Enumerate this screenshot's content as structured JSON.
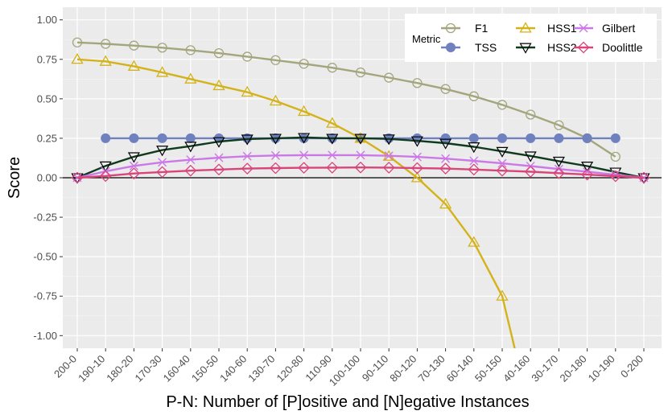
{
  "chart_data": {
    "type": "line",
    "xlabel": "P-N: Number of [P]ositive and [N]egative Instances",
    "ylabel": "Score",
    "categories": [
      "200-0",
      "190-10",
      "180-20",
      "170-30",
      "160-40",
      "150-50",
      "140-60",
      "130-70",
      "120-80",
      "110-90",
      "100-100",
      "90-110",
      "80-120",
      "70-130",
      "60-140",
      "50-150",
      "40-160",
      "30-170",
      "20-180",
      "10-190",
      "0-200"
    ],
    "ylim": [
      -1.08,
      1.08
    ],
    "yticks": [
      1.0,
      0.75,
      0.5,
      0.25,
      0.0,
      -0.25,
      -0.5,
      -0.75,
      -1.0
    ],
    "ytick_labels": [
      "1.00",
      "0.75",
      "0.50",
      "0.25",
      "0.00",
      "-0.25",
      "-0.50",
      "-0.75",
      "-1.00"
    ],
    "grid": true,
    "legend": {
      "title": "Metric",
      "placement": "top-right"
    },
    "series": [
      {
        "name": "F1",
        "color": "#A3A67D",
        "marker": "circle-open",
        "values": [
          0.857,
          0.848,
          0.837,
          0.824,
          0.808,
          0.789,
          0.767,
          0.745,
          0.722,
          0.697,
          0.667,
          0.634,
          0.6,
          0.562,
          0.516,
          0.462,
          0.4,
          0.333,
          0.25,
          0.133,
          null
        ]
      },
      {
        "name": "TSS",
        "color": "#6F81BE",
        "marker": "circle-filled",
        "values": [
          null,
          0.25,
          0.25,
          0.25,
          0.25,
          0.25,
          0.25,
          0.25,
          0.25,
          0.25,
          0.25,
          0.25,
          0.25,
          0.25,
          0.25,
          0.25,
          0.25,
          0.25,
          0.25,
          0.25,
          null
        ]
      },
      {
        "name": "HSS1",
        "color": "#D4B21A",
        "marker": "triangle-up-open",
        "values": [
          0.75,
          0.737,
          0.706,
          0.667,
          0.625,
          0.583,
          0.542,
          0.486,
          0.42,
          0.345,
          0.25,
          0.136,
          0.0,
          -0.167,
          -0.409,
          -0.75,
          -1.5,
          null,
          null,
          null,
          null
        ]
      },
      {
        "name": "HSS2",
        "color": "#0F3A1E",
        "marker": "triangle-down-open",
        "values": [
          0.0,
          0.075,
          0.133,
          0.175,
          0.2,
          0.229,
          0.245,
          0.25,
          0.255,
          0.25,
          0.25,
          0.246,
          0.234,
          0.219,
          0.196,
          0.167,
          0.138,
          0.105,
          0.074,
          0.036,
          0.0
        ]
      },
      {
        "name": "Gilbert",
        "color": "#CC79E8",
        "marker": "x",
        "values": [
          0.0,
          0.04,
          0.075,
          0.098,
          0.114,
          0.127,
          0.136,
          0.141,
          0.143,
          0.143,
          0.143,
          0.139,
          0.132,
          0.121,
          0.107,
          0.091,
          0.074,
          0.055,
          0.038,
          0.019,
          0.0
        ]
      },
      {
        "name": "Doolittle",
        "color": "#D9457A",
        "marker": "diamond-open",
        "values": [
          0.0,
          0.011,
          0.027,
          0.036,
          0.045,
          0.052,
          0.058,
          0.061,
          0.063,
          0.064,
          0.065,
          0.064,
          0.061,
          0.058,
          0.052,
          0.045,
          0.038,
          0.029,
          0.02,
          0.01,
          0.0
        ]
      }
    ]
  }
}
